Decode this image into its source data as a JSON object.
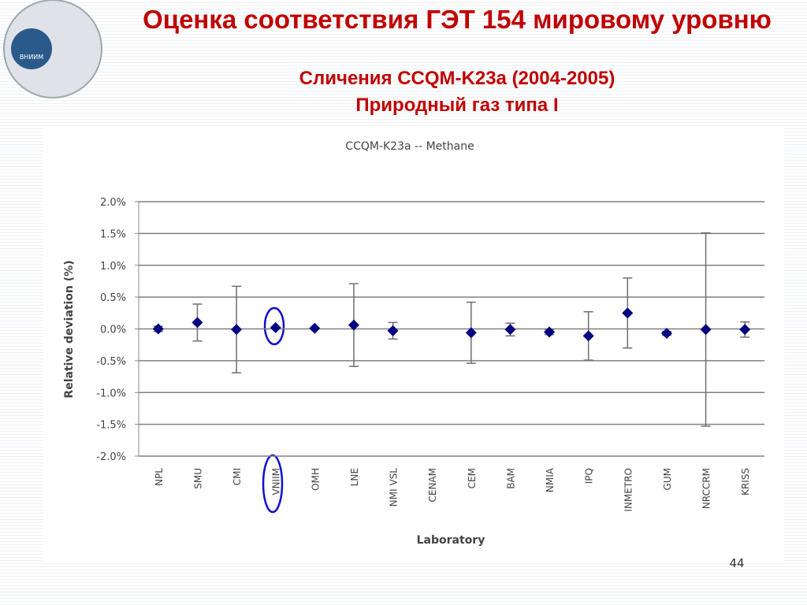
{
  "slide": {
    "title": "Оценка соответствия ГЭТ 154 мировому уровню",
    "subtitle": "Сличения CCQM-K23a (2004-2005)",
    "subtitle2": "Природный газ типа I",
    "logo_text": "ВНИИМ",
    "page_number": "44"
  },
  "chart_data": {
    "type": "errorbar",
    "title": "CCQM-K23a -- Methane",
    "ylabel": "Relative deviation (%)",
    "xlabel": "Laboratory",
    "categories": [
      "NPL",
      "SMU",
      "CMI",
      "VNIIM",
      "OMH",
      "LNE",
      "NMI VSL",
      "CENAM",
      "CEM",
      "BAM",
      "NMIA",
      "IPQ",
      "INMETRO",
      "GUM",
      "NRCCRM",
      "KRISS"
    ],
    "values": [
      0.0,
      0.1,
      -0.01,
      0.02,
      0.01,
      0.06,
      -0.03,
      null,
      -0.06,
      -0.01,
      -0.05,
      -0.11,
      0.25,
      -0.07,
      -0.01,
      -0.01
    ],
    "errors": [
      0.04,
      0.29,
      0.68,
      0.0,
      0.0,
      0.65,
      0.13,
      null,
      0.48,
      0.1,
      0.04,
      0.38,
      0.55,
      0.03,
      1.52,
      0.12
    ],
    "color": "#000080",
    "error_color": "#707070",
    "ylim": [
      -2,
      2
    ],
    "yticks": [
      {
        "value": -2,
        "label": "-2.0%"
      },
      {
        "value": -1.5,
        "label": "-1.5%"
      },
      {
        "value": -1,
        "label": "-1.0%"
      },
      {
        "value": -0.5,
        "label": "-0.5%"
      },
      {
        "value": 0,
        "label": "0.0%"
      },
      {
        "value": 0.5,
        "label": "0.5%"
      },
      {
        "value": 1,
        "label": "1.0%"
      },
      {
        "value": 1.5,
        "label": "1.5%"
      },
      {
        "value": 2,
        "label": "2.0%"
      }
    ],
    "grid": true
  }
}
